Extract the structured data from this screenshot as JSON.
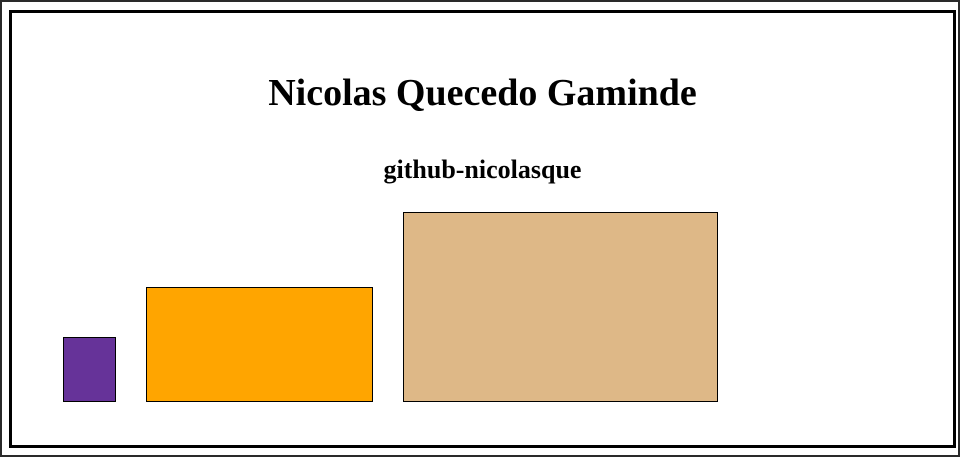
{
  "header": {
    "title": "Nicolas Quecedo Gaminde",
    "subtitle": "github-nicolasque"
  },
  "blocks": [
    {
      "color": "#663399"
    },
    {
      "color": "#ffa500"
    },
    {
      "color": "#deb887"
    }
  ]
}
